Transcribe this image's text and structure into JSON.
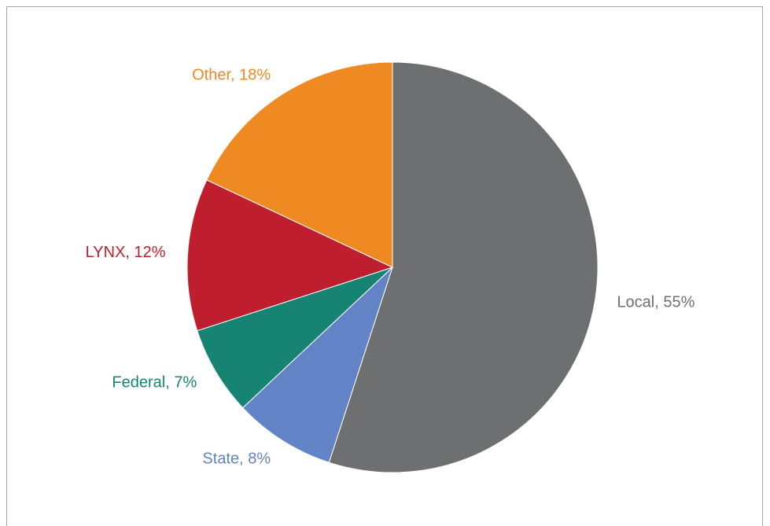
{
  "chart_data": {
    "type": "pie",
    "values": [
      55,
      8,
      7,
      12,
      18
    ],
    "value_labels": [
      "Local, 55%",
      "State, 8%",
      "Federal, 7%",
      "LYNX, 12%",
      "Other, 18%"
    ],
    "colors": [
      "#6d6f71",
      "#6283c5",
      "#178473",
      "#be1e2d",
      "#ef8a22"
    ]
  }
}
